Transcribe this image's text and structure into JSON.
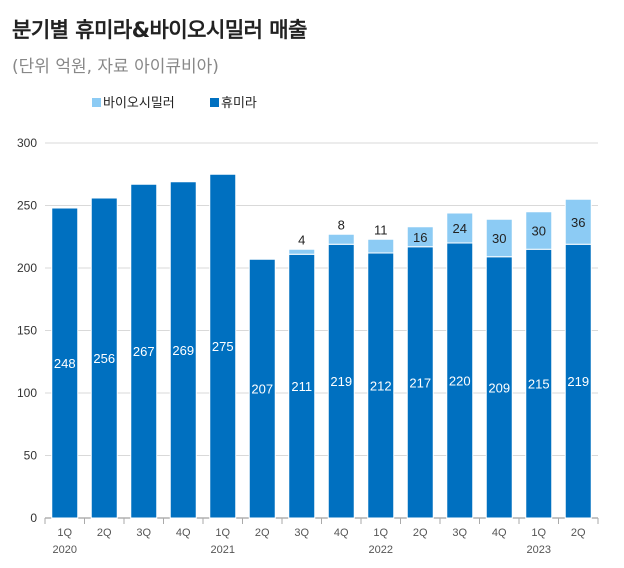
{
  "header": {
    "title": "분기별 휴미라&바이오시밀러 매출",
    "subtitle": "(단위 억원, 자료 아이큐비아)"
  },
  "chart_data": {
    "type": "bar",
    "stacked": true,
    "title": "분기별 휴미라&바이오시밀러 매출",
    "subtitle": "(단위 억원, 자료 아이큐비아)",
    "categories": [
      "1Q",
      "2Q",
      "3Q",
      "4Q",
      "1Q",
      "2Q",
      "3Q",
      "4Q",
      "1Q",
      "2Q",
      "3Q",
      "4Q",
      "1Q",
      "2Q"
    ],
    "year_labels": [
      "2020",
      "",
      "",
      "",
      "2021",
      "",
      "",
      "",
      "2022",
      "",
      "",
      "",
      "2023",
      ""
    ],
    "series": [
      {
        "name": "휴미라",
        "color": "#0070c0",
        "values": [
          248,
          256,
          267,
          269,
          275,
          207,
          211,
          219,
          212,
          217,
          220,
          209,
          215,
          219
        ]
      },
      {
        "name": "바이오시밀러",
        "color": "#8ccbf4",
        "values": [
          null,
          null,
          null,
          null,
          null,
          null,
          4,
          8,
          11,
          16,
          24,
          30,
          30,
          36
        ]
      }
    ],
    "legend_order": [
      "바이오시밀러",
      "휴미라"
    ],
    "legend_position": "top-left",
    "ylim": [
      0,
      300
    ],
    "yticks": [
      0,
      50,
      100,
      150,
      200,
      250,
      300
    ],
    "grid": true,
    "xlabel": "",
    "ylabel": ""
  }
}
